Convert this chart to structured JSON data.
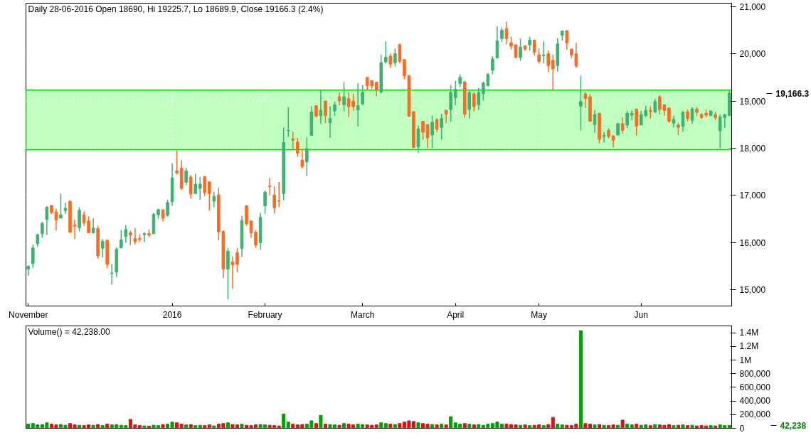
{
  "chart_data": [
    {
      "type": "candlestick",
      "title": "Daily 28-06-2016 Open 18690, Hi 19225.7, Lo 18689.9, Close 19166.3 (2.4%)",
      "categories": [
        "November",
        null,
        null,
        null,
        null,
        null,
        null,
        null,
        null,
        null,
        null,
        null,
        null,
        null,
        null,
        null,
        null,
        null,
        null,
        null,
        null,
        null,
        null,
        null,
        null,
        null,
        null,
        null,
        null,
        null,
        null,
        "2016",
        null,
        null,
        null,
        null,
        null,
        null,
        null,
        null,
        null,
        null,
        null,
        null,
        null,
        null,
        null,
        null,
        null,
        null,
        null,
        "February",
        null,
        null,
        null,
        null,
        null,
        null,
        null,
        null,
        null,
        null,
        null,
        null,
        null,
        null,
        null,
        null,
        null,
        null,
        null,
        null,
        "March",
        null,
        null,
        null,
        null,
        null,
        null,
        null,
        null,
        null,
        null,
        null,
        null,
        null,
        null,
        null,
        null,
        null,
        null,
        null,
        "April",
        null,
        null,
        null,
        null,
        null,
        null,
        null,
        null,
        null,
        null,
        null,
        null,
        null,
        null,
        null,
        null,
        null,
        "May",
        null,
        null,
        null,
        null,
        null,
        null,
        null,
        null,
        null,
        null,
        null,
        null,
        null,
        null,
        null,
        null,
        null,
        null,
        null,
        null,
        null,
        "Jun",
        null,
        null,
        null,
        null,
        null,
        null,
        null,
        null,
        null,
        null,
        null,
        null,
        null,
        null,
        null,
        null,
        null,
        null,
        null
      ],
      "ohlc": [
        [
          15440,
          15520,
          15300,
          15500
        ],
        [
          15560,
          15960,
          15470,
          15890
        ],
        [
          15980,
          16190,
          15920,
          16170
        ],
        [
          16190,
          16440,
          16100,
          16410
        ],
        [
          16490,
          16770,
          16170,
          16750
        ],
        [
          16790,
          16790,
          16610,
          16640
        ],
        [
          16650,
          16720,
          16260,
          16480
        ],
        [
          16520,
          17040,
          16520,
          16590
        ],
        [
          16680,
          16850,
          16610,
          16730
        ],
        [
          16880,
          16880,
          16210,
          16220
        ],
        [
          16380,
          16490,
          16080,
          16350
        ],
        [
          16320,
          16750,
          16240,
          16690
        ],
        [
          16590,
          16660,
          16360,
          16420
        ],
        [
          16460,
          16560,
          16200,
          16210
        ],
        [
          16210,
          16520,
          16190,
          16310
        ],
        [
          16300,
          16360,
          15660,
          15720
        ],
        [
          15880,
          16080,
          15690,
          16030
        ],
        [
          16050,
          16070,
          15460,
          15540
        ],
        [
          15350,
          15550,
          15110,
          15360
        ],
        [
          15380,
          15900,
          15270,
          15860
        ],
        [
          15890,
          16270,
          15890,
          16060
        ],
        [
          16130,
          16370,
          16000,
          16280
        ],
        [
          16210,
          16250,
          15950,
          16160
        ],
        [
          16090,
          16310,
          15960,
          16020
        ],
        [
          16090,
          16180,
          16020,
          16070
        ],
        [
          16170,
          16220,
          16010,
          16190
        ],
        [
          16190,
          16280,
          16120,
          16160
        ],
        [
          16190,
          16630,
          16190,
          16600
        ],
        [
          16590,
          16720,
          16510,
          16700
        ],
        [
          16700,
          16700,
          16450,
          16520
        ],
        [
          16580,
          16910,
          16550,
          16850
        ],
        [
          16870,
          17680,
          16780,
          17370
        ],
        [
          17520,
          17960,
          17440,
          17480
        ],
        [
          17580,
          17750,
          17120,
          17150
        ],
        [
          17280,
          17590,
          17220,
          17520
        ],
        [
          17390,
          17430,
          16930,
          17030
        ],
        [
          17040,
          17460,
          17040,
          17240
        ],
        [
          17150,
          17390,
          16910,
          17240
        ],
        [
          17400,
          17400,
          16990,
          17060
        ],
        [
          17290,
          17290,
          16680,
          17040
        ],
        [
          16880,
          17080,
          16750,
          16980
        ],
        [
          17010,
          17170,
          16050,
          16230
        ],
        [
          16240,
          16260,
          15250,
          15440
        ],
        [
          15440,
          15890,
          14800,
          15820
        ],
        [
          15590,
          15710,
          15030,
          15530
        ],
        [
          15790,
          15890,
          15380,
          15540
        ],
        [
          15880,
          16570,
          15700,
          16470
        ],
        [
          16780,
          16780,
          16360,
          16400
        ],
        [
          16460,
          16460,
          16110,
          16210
        ],
        [
          16220,
          16270,
          15890,
          15950
        ],
        [
          16000,
          16630,
          15850,
          16540
        ],
        [
          16780,
          17100,
          16610,
          17070
        ],
        [
          17200,
          17370,
          17000,
          17190
        ],
        [
          17010,
          17190,
          16620,
          16740
        ],
        [
          16890,
          17290,
          16750,
          16880
        ],
        [
          17040,
          18440,
          16900,
          18120
        ],
        [
          18370,
          18870,
          18240,
          18380
        ],
        [
          18200,
          18350,
          17980,
          18170
        ],
        [
          18130,
          18220,
          17820,
          17900
        ],
        [
          17750,
          17990,
          17570,
          17610
        ],
        [
          17710,
          18230,
          17410,
          17990
        ],
        [
          18270,
          18890,
          18270,
          18770
        ],
        [
          18900,
          18900,
          18650,
          18680
        ],
        [
          18690,
          19240,
          18520,
          18800
        ],
        [
          19000,
          19000,
          18530,
          18690
        ],
        [
          18540,
          18890,
          18220,
          18630
        ],
        [
          18790,
          18990,
          18680,
          18920
        ],
        [
          19090,
          19180,
          18910,
          19000
        ],
        [
          18920,
          19400,
          18780,
          19090
        ],
        [
          19050,
          19180,
          18660,
          18880
        ],
        [
          19000,
          19150,
          18790,
          18880
        ],
        [
          18810,
          19380,
          18460,
          18900
        ],
        [
          18940,
          19340,
          18910,
          19180
        ],
        [
          19500,
          19500,
          19230,
          19320
        ],
        [
          19430,
          19430,
          19260,
          19320
        ],
        [
          19400,
          19400,
          19100,
          19240
        ],
        [
          19190,
          19980,
          19160,
          19810
        ],
        [
          19830,
          20260,
          19790,
          19930
        ],
        [
          19950,
          20000,
          19710,
          19780
        ],
        [
          19810,
          20110,
          19730,
          20000
        ],
        [
          20190,
          20220,
          19800,
          19840
        ],
        [
          19880,
          19880,
          19460,
          19530
        ],
        [
          19540,
          19540,
          18660,
          18680
        ],
        [
          18770,
          18790,
          18000,
          18020
        ],
        [
          18030,
          18480,
          17900,
          18410
        ],
        [
          18570,
          18580,
          18180,
          18340
        ],
        [
          18500,
          18500,
          18000,
          18220
        ],
        [
          18280,
          18690,
          18000,
          18550
        ],
        [
          18600,
          18640,
          18340,
          18400
        ],
        [
          18440,
          18730,
          18180,
          18630
        ],
        [
          18800,
          18820,
          18530,
          18720
        ],
        [
          18820,
          19340,
          18560,
          19180
        ],
        [
          19070,
          19430,
          18910,
          19250
        ],
        [
          19370,
          19560,
          19290,
          19500
        ],
        [
          19400,
          19430,
          18650,
          18720
        ],
        [
          18820,
          19210,
          18630,
          19180
        ],
        [
          19150,
          19180,
          18780,
          18880
        ],
        [
          18920,
          19280,
          18810,
          19180
        ],
        [
          19160,
          19410,
          19010,
          19380
        ],
        [
          19320,
          19590,
          19320,
          19560
        ],
        [
          19650,
          19950,
          19560,
          19890
        ],
        [
          19910,
          20580,
          19910,
          20270
        ],
        [
          20320,
          20560,
          20250,
          20500
        ],
        [
          20530,
          20680,
          20200,
          20320
        ],
        [
          20230,
          20360,
          20100,
          20160
        ],
        [
          20190,
          20190,
          19910,
          19920
        ],
        [
          19920,
          20320,
          19850,
          20140
        ],
        [
          20170,
          20170,
          20060,
          20100
        ],
        [
          20190,
          20360,
          20070,
          20290
        ],
        [
          20290,
          20290,
          19960,
          20030
        ],
        [
          19980,
          20110,
          19800,
          19840
        ],
        [
          19960,
          20260,
          19800,
          19970
        ],
        [
          20000,
          20070,
          19610,
          19750
        ],
        [
          19860,
          19980,
          19210,
          19680
        ],
        [
          19750,
          20330,
          19620,
          20210
        ],
        [
          20390,
          20490,
          20280,
          20480
        ],
        [
          20490,
          20490,
          20090,
          20230
        ],
        [
          20100,
          20100,
          19910,
          19970
        ],
        [
          20000,
          20230,
          19710,
          19740
        ],
        [
          18890,
          19540,
          18380,
          18990
        ],
        [
          19150,
          19190,
          18850,
          19050
        ],
        [
          19090,
          19150,
          18560,
          18570
        ],
        [
          18500,
          18810,
          18330,
          18710
        ],
        [
          18740,
          18740,
          18110,
          18190
        ],
        [
          18250,
          18340,
          18120,
          18270
        ],
        [
          18380,
          18420,
          18210,
          18250
        ],
        [
          18260,
          18280,
          18020,
          18170
        ],
        [
          18280,
          18540,
          18270,
          18520
        ],
        [
          18520,
          18660,
          18310,
          18380
        ],
        [
          18490,
          18790,
          18430,
          18740
        ],
        [
          18700,
          18800,
          18600,
          18740
        ],
        [
          18830,
          18830,
          18270,
          18470
        ],
        [
          18490,
          18790,
          18490,
          18710
        ],
        [
          18690,
          18900,
          18660,
          18800
        ],
        [
          18800,
          18890,
          18630,
          18780
        ],
        [
          18770,
          19050,
          18740,
          18990
        ],
        [
          19090,
          19120,
          18720,
          18820
        ],
        [
          18920,
          18920,
          18690,
          18800
        ],
        [
          18850,
          18870,
          18540,
          18570
        ],
        [
          18530,
          18690,
          18440,
          18610
        ],
        [
          18490,
          18540,
          18280,
          18440
        ],
        [
          18460,
          18790,
          18350,
          18760
        ],
        [
          18770,
          18820,
          18570,
          18630
        ],
        [
          18590,
          18870,
          18520,
          18830
        ],
        [
          18830,
          18870,
          18680,
          18760
        ],
        [
          18710,
          18740,
          18620,
          18650
        ],
        [
          18740,
          18820,
          18650,
          18700
        ],
        [
          18690,
          18790,
          18680,
          18790
        ],
        [
          18710,
          18770,
          18600,
          18650
        ],
        [
          18370,
          18710,
          18000,
          18660
        ],
        [
          18650,
          18730,
          18430,
          18710
        ],
        [
          18690,
          19225.7,
          18689.9,
          19166.3
        ]
      ],
      "colors": [
        "#3cb371",
        "#3cb371",
        "#3cb371",
        "#3cb371",
        "#3cb371",
        "#ff6a21",
        "#ff6a21",
        "#3cb371",
        "#3cb371",
        "#ff6a21",
        "#ff6a21",
        "#3cb371",
        "#ff6a21",
        "#ff6a21",
        "#3cb371",
        "#ff6a21",
        "#3cb371",
        "#ff6a21",
        "#3cb371",
        "#3cb371",
        "#3cb371",
        "#3cb371",
        "#ff6a21",
        "#ff6a21",
        "#ff6a21",
        "#3cb371",
        "#ff6a21",
        "#3cb371",
        "#3cb371",
        "#ff6a21",
        "#3cb371",
        "#3cb371",
        "#ff6a21",
        "#ff6a21",
        "#3cb371",
        "#ff6a21",
        "#3cb371",
        "#3cb371",
        "#ff6a21",
        "#ff6a21",
        "#3cb371",
        "#ff6a21",
        "#ff6a21",
        "#3cb371",
        "#ff6a21",
        "#ff6a21",
        "#3cb371",
        "#ff6a21",
        "#ff6a21",
        "#ff6a21",
        "#3cb371",
        "#3cb371",
        "#ff6a21",
        "#ff6a21",
        "#ff6a21",
        "#3cb371",
        "#3cb371",
        "#ff6a21",
        "#ff6a21",
        "#ff6a21",
        "#3cb371",
        "#3cb371",
        "#ff6a21",
        "#3cb371",
        "#ff6a21",
        "#3cb371",
        "#3cb371",
        "#ff6a21",
        "#3cb371",
        "#ff6a21",
        "#ff6a21",
        "#3cb371",
        "#3cb371",
        "#ff6a21",
        "#ff6a21",
        "#ff6a21",
        "#3cb371",
        "#3cb371",
        "#ff6a21",
        "#3cb371",
        "#ff6a21",
        "#ff6a21",
        "#ff6a21",
        "#ff6a21",
        "#3cb371",
        "#ff6a21",
        "#ff6a21",
        "#3cb371",
        "#ff6a21",
        "#3cb371",
        "#ff6a21",
        "#3cb371",
        "#3cb371",
        "#3cb371",
        "#ff6a21",
        "#3cb371",
        "#ff6a21",
        "#3cb371",
        "#3cb371",
        "#3cb371",
        "#3cb371",
        "#3cb371",
        "#3cb371",
        "#ff6a21",
        "#ff6a21",
        "#ff6a21",
        "#3cb371",
        "#ff6a21",
        "#3cb371",
        "#ff6a21",
        "#ff6a21",
        "#3cb371",
        "#ff6a21",
        "#ff6a21",
        "#3cb371",
        "#3cb371",
        "#ff6a21",
        "#ff6a21",
        "#ff6a21",
        "#3cb371",
        "#ff6a21",
        "#ff6a21",
        "#3cb371",
        "#ff6a21",
        "#3cb371",
        "#ff6a21",
        "#ff6a21",
        "#3cb371",
        "#ff6a21",
        "#3cb371",
        "#3cb371",
        "#ff6a21",
        "#3cb371",
        "#3cb371",
        "#ff6a21",
        "#3cb371",
        "#ff6a21",
        "#ff6a21",
        "#ff6a21",
        "#3cb371",
        "#ff6a21",
        "#3cb371",
        "#ff6a21",
        "#3cb371",
        "#ff6a21",
        "#ff6a21",
        "#ff6a21",
        "#3cb371",
        "#ff6a21",
        "#3cb371",
        "#3cb371",
        "#3cb371"
      ],
      "ylim": [
        14660,
        21070
      ],
      "yticks": [
        {
          "value": 15000,
          "label": "15,000"
        },
        {
          "value": 16000,
          "label": "16,000"
        },
        {
          "value": 17000,
          "label": "17,000"
        },
        {
          "value": 18000,
          "label": "18,000"
        },
        {
          "value": 19000,
          "label": "19,000"
        },
        {
          "value": 20000,
          "label": "20,000"
        },
        {
          "value": 21000,
          "label": "21,000"
        }
      ],
      "bands": [
        {
          "axis": "y",
          "from": 17970,
          "to": 19230,
          "color": "#bfffbf"
        }
      ],
      "annotations": [
        "19,166.3"
      ],
      "grid": true
    },
    {
      "type": "bar",
      "title": "Volume() = 42,238.00",
      "categories": [
        null,
        null,
        null,
        null,
        null,
        null,
        null,
        null,
        null,
        null,
        null,
        null,
        null,
        null,
        null,
        null,
        null,
        null,
        null,
        null,
        null,
        null,
        null,
        null,
        null,
        null,
        null,
        null,
        null,
        null,
        null,
        null,
        null,
        null,
        null,
        null,
        null,
        null,
        null,
        null,
        null,
        null,
        null,
        null,
        null,
        null,
        null,
        null,
        null,
        null,
        null,
        null,
        null,
        null,
        null,
        null,
        null,
        null,
        null,
        null,
        null,
        null,
        null,
        null,
        null,
        null,
        null,
        null,
        null,
        null,
        null,
        null,
        null,
        null,
        null,
        null,
        null,
        null,
        null,
        null,
        null,
        null,
        null,
        null,
        null,
        null,
        null,
        null,
        null,
        null,
        null,
        null,
        null,
        null,
        null,
        null,
        null,
        null,
        null,
        null,
        null,
        null,
        null,
        null,
        null,
        null,
        null,
        null,
        null,
        null,
        null,
        null,
        null,
        null,
        null,
        null,
        null,
        null,
        null,
        null,
        null,
        null,
        null,
        null,
        null,
        null,
        null,
        null,
        null,
        null,
        null,
        null,
        null,
        null,
        null,
        null,
        null,
        null,
        null,
        null,
        null,
        null,
        null,
        null,
        null,
        null,
        null,
        null,
        null,
        null,
        null,
        null
      ],
      "values": [
        60000,
        70000,
        50000,
        55000,
        80000,
        60000,
        50000,
        55000,
        45000,
        70000,
        50000,
        45000,
        40000,
        50000,
        45000,
        55000,
        40000,
        60000,
        50000,
        55000,
        45000,
        40000,
        130000,
        50000,
        40000,
        35000,
        30000,
        45000,
        40000,
        55000,
        60000,
        90000,
        80000,
        60000,
        50000,
        55000,
        40000,
        45000,
        40000,
        50000,
        35000,
        60000,
        70000,
        80000,
        55000,
        50000,
        60000,
        45000,
        40000,
        50000,
        55000,
        50000,
        45000,
        40000,
        35000,
        210000,
        90000,
        60000,
        50000,
        55000,
        60000,
        110000,
        70000,
        190000,
        60000,
        55000,
        50000,
        45000,
        70000,
        60000,
        50000,
        60000,
        55000,
        50000,
        45000,
        50000,
        80000,
        70000,
        60000,
        55000,
        70000,
        90000,
        110000,
        100000,
        80000,
        70000,
        60000,
        55000,
        50000,
        60000,
        50000,
        170000,
        80000,
        60000,
        70000,
        60000,
        50000,
        55000,
        45000,
        60000,
        70000,
        90000,
        60000,
        60000,
        55000,
        50000,
        45000,
        50000,
        40000,
        45000,
        50000,
        40000,
        55000,
        160000,
        60000,
        50000,
        45000,
        40000,
        60000,
        1430000,
        70000,
        60000,
        50000,
        55000,
        45000,
        40000,
        50000,
        45000,
        120000,
        60000,
        50000,
        60000,
        45000,
        50000,
        40000,
        55000,
        50000,
        45000,
        55000,
        40000,
        45000,
        50000,
        40000,
        45000,
        35000,
        40000,
        35000,
        40000,
        35000,
        50000,
        40000,
        42238
      ],
      "colors": [
        "#00a000",
        "#00a000",
        "#00a000",
        "#00a000",
        "#00a000",
        "#e01010",
        "#e01010",
        "#00a000",
        "#00a000",
        "#e01010",
        "#e01010",
        "#00a000",
        "#e01010",
        "#e01010",
        "#00a000",
        "#e01010",
        "#00a000",
        "#e01010",
        "#00a000",
        "#00a000",
        "#00a000",
        "#00a000",
        "#e01010",
        "#e01010",
        "#e01010",
        "#00a000",
        "#e01010",
        "#00a000",
        "#00a000",
        "#e01010",
        "#00a000",
        "#00a000",
        "#e01010",
        "#e01010",
        "#00a000",
        "#e01010",
        "#00a000",
        "#00a000",
        "#e01010",
        "#e01010",
        "#00a000",
        "#e01010",
        "#e01010",
        "#00a000",
        "#e01010",
        "#e01010",
        "#00a000",
        "#e01010",
        "#e01010",
        "#e01010",
        "#00a000",
        "#00a000",
        "#e01010",
        "#e01010",
        "#e01010",
        "#00a000",
        "#00a000",
        "#e01010",
        "#e01010",
        "#e01010",
        "#00a000",
        "#00a000",
        "#e01010",
        "#00a000",
        "#e01010",
        "#00a000",
        "#00a000",
        "#e01010",
        "#00a000",
        "#e01010",
        "#e01010",
        "#00a000",
        "#00a000",
        "#e01010",
        "#e01010",
        "#e01010",
        "#00a000",
        "#00a000",
        "#e01010",
        "#00a000",
        "#e01010",
        "#e01010",
        "#e01010",
        "#e01010",
        "#00a000",
        "#e01010",
        "#e01010",
        "#00a000",
        "#e01010",
        "#00a000",
        "#e01010",
        "#00a000",
        "#00a000",
        "#00a000",
        "#e01010",
        "#00a000",
        "#e01010",
        "#00a000",
        "#00a000",
        "#00a000",
        "#00a000",
        "#00a000",
        "#00a000",
        "#e01010",
        "#e01010",
        "#e01010",
        "#00a000",
        "#e01010",
        "#00a000",
        "#e01010",
        "#e01010",
        "#00a000",
        "#e01010",
        "#e01010",
        "#00a000",
        "#00a000",
        "#e01010",
        "#e01010",
        "#e01010",
        "#00a000",
        "#e01010",
        "#e01010",
        "#00a000",
        "#e01010",
        "#00a000",
        "#e01010",
        "#e01010",
        "#00a000",
        "#e01010",
        "#00a000",
        "#00a000",
        "#e01010",
        "#00a000",
        "#00a000",
        "#e01010",
        "#00a000",
        "#e01010",
        "#e01010",
        "#e01010",
        "#00a000",
        "#e01010",
        "#00a000",
        "#e01010",
        "#00a000",
        "#e01010",
        "#e01010",
        "#e01010",
        "#00a000",
        "#e01010",
        "#00a000",
        "#00a000",
        "#00a000"
      ],
      "ylim": [
        0,
        1500000
      ],
      "yticks": [
        0,
        {
          "value": 200000,
          "label": "200,000"
        },
        {
          "value": 400000,
          "label": "400,000"
        },
        {
          "value": 600000,
          "label": "600,000"
        },
        {
          "value": 800000,
          "label": "800,000"
        },
        {
          "value": 1000000,
          "label": "1M"
        },
        {
          "value": 1200000,
          "label": "1.2M"
        },
        {
          "value": 1400000,
          "label": "1.4M"
        }
      ],
      "annotations": [
        "42,238"
      ],
      "tick_labels": "y"
    }
  ]
}
